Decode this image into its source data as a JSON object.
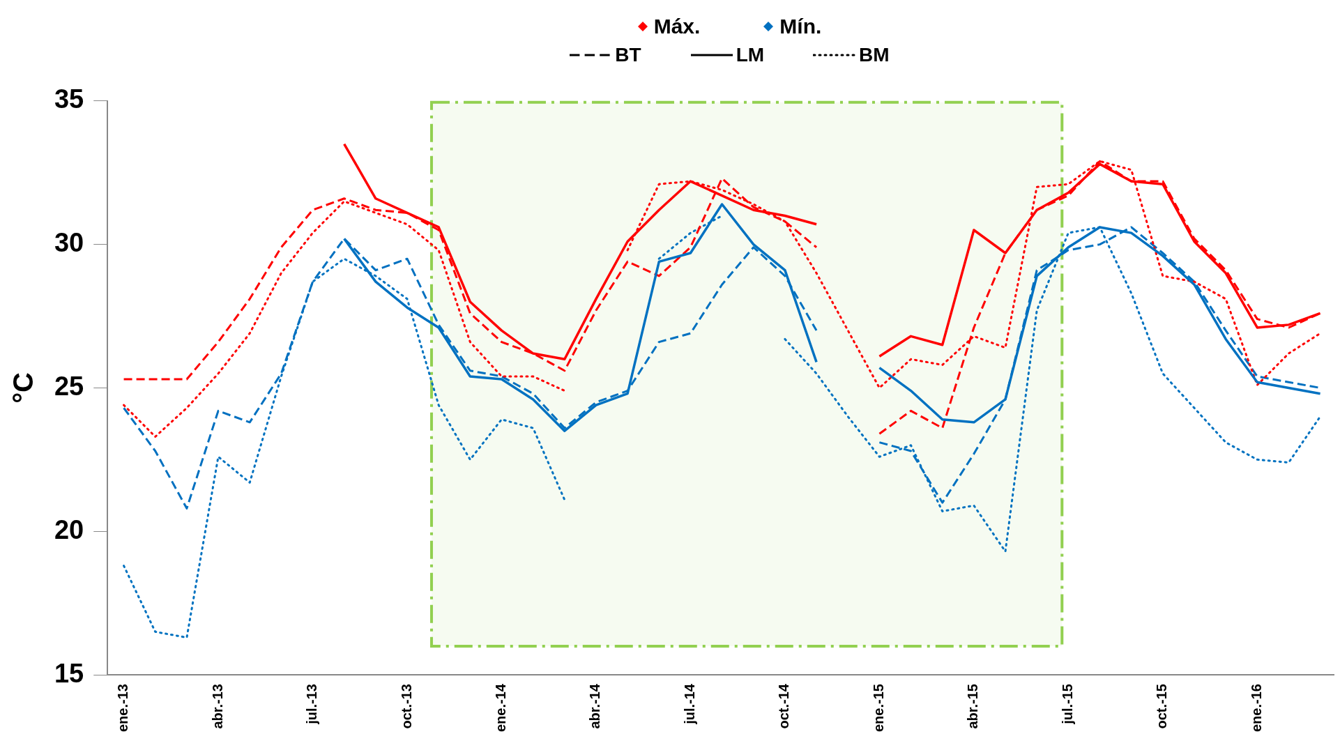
{
  "chart_data": {
    "type": "line",
    "ylabel": "°C",
    "x": [
      "2013-01",
      "2013-02",
      "2013-03",
      "2013-04",
      "2013-05",
      "2013-06",
      "2013-07",
      "2013-08",
      "2013-09",
      "2013-10",
      "2013-11",
      "2013-12",
      "2014-01",
      "2014-02",
      "2014-03",
      "2014-04",
      "2014-05",
      "2014-06",
      "2014-07",
      "2014-08",
      "2014-09",
      "2014-10",
      "2014-11",
      "2014-12",
      "2015-01",
      "2015-02",
      "2015-03",
      "2015-04",
      "2015-05",
      "2015-06",
      "2015-07",
      "2015-08",
      "2015-09",
      "2015-10",
      "2015-11",
      "2015-12",
      "2016-01",
      "2016-02",
      "2016-03"
    ],
    "xlim": [
      "2012-12-16",
      "2016-03-15"
    ],
    "xticks": [
      {
        "value": "2013-01",
        "label": "ene.-13"
      },
      {
        "value": "2013-04",
        "label": "abr.-13"
      },
      {
        "value": "2013-07",
        "label": "jul.-13"
      },
      {
        "value": "2013-10",
        "label": "oct.-13"
      },
      {
        "value": "2014-01",
        "label": "ene.-14"
      },
      {
        "value": "2014-04",
        "label": "abr.-14"
      },
      {
        "value": "2014-07",
        "label": "jul.-14"
      },
      {
        "value": "2014-10",
        "label": "oct.-14"
      },
      {
        "value": "2015-01",
        "label": "ene.-15"
      },
      {
        "value": "2015-04",
        "label": "abr.-15"
      },
      {
        "value": "2015-07",
        "label": "jul.-15"
      },
      {
        "value": "2015-10",
        "label": "oct.-15"
      },
      {
        "value": "2016-01",
        "label": "ene.-16"
      }
    ],
    "ylim": [
      15,
      35
    ],
    "yticks": [
      15,
      20,
      25,
      30,
      35
    ],
    "marker": "none",
    "annotations": [
      "Máx.",
      "Mín.",
      "BT",
      "LM",
      "BM"
    ],
    "bands": [
      {
        "axis": "x",
        "from": "2013-10-25",
        "to": "2015-06-25",
        "color": "#92d050"
      }
    ],
    "series": [
      {
        "color": "#fe0000",
        "line_style": "dashed",
        "values": [
          25.3,
          25.3,
          25.3,
          26.6,
          28.1,
          29.9,
          31.2,
          31.6,
          31.2,
          31.1,
          30.5,
          27.6,
          26.6,
          26.2,
          25.6,
          27.7,
          29.4,
          28.9,
          29.9,
          32.3,
          31.3,
          30.8,
          29.9,
          null,
          23.4,
          24.2,
          23.6,
          27.1,
          29.7,
          31.2,
          31.7,
          32.9,
          32.2,
          32.2,
          30.2,
          29.1,
          27.4,
          27.1,
          27.6
        ]
      },
      {
        "color": "#ff0000",
        "line_style": "solid",
        "values": [
          null,
          null,
          null,
          null,
          null,
          null,
          null,
          33.5,
          31.6,
          31.1,
          30.6,
          28.0,
          27.0,
          26.2,
          26.0,
          28.1,
          30.1,
          31.2,
          32.2,
          31.7,
          31.2,
          31.0,
          30.7,
          null,
          26.1,
          26.8,
          26.5,
          30.5,
          29.7,
          31.2,
          31.8,
          32.8,
          32.2,
          32.1,
          30.1,
          29.0,
          27.1,
          27.2,
          27.6
        ]
      },
      {
        "color": "#fd0101",
        "line_style": "dotted",
        "values": [
          24.4,
          23.3,
          24.3,
          25.5,
          26.9,
          29.0,
          30.4,
          31.5,
          31.1,
          30.7,
          29.8,
          26.6,
          25.4,
          25.4,
          24.9,
          null,
          29.8,
          32.1,
          32.2,
          31.9,
          31.4,
          30.8,
          29.0,
          27.0,
          25.0,
          26.0,
          25.8,
          26.8,
          26.4,
          32.0,
          32.1,
          32.9,
          32.6,
          28.9,
          28.7,
          28.1,
          25.1,
          26.2,
          26.9
        ]
      },
      {
        "color": "#0070c0",
        "line_style": "dashed",
        "values": [
          24.3,
          22.8,
          20.8,
          24.2,
          23.8,
          25.5,
          28.7,
          30.2,
          29.1,
          29.5,
          27.2,
          25.6,
          25.4,
          24.8,
          23.6,
          24.5,
          24.9,
          26.6,
          26.9,
          28.6,
          29.9,
          28.9,
          27.0,
          null,
          23.1,
          22.8,
          21.0,
          22.7,
          24.6,
          29.1,
          29.8,
          30.0,
          30.6,
          29.7,
          28.7,
          27.0,
          25.4,
          25.2,
          25.0
        ]
      },
      {
        "color": "#0071c1",
        "line_style": "solid",
        "values": [
          null,
          null,
          null,
          null,
          null,
          null,
          null,
          30.2,
          28.7,
          27.8,
          27.1,
          25.4,
          25.3,
          24.6,
          23.5,
          24.4,
          24.8,
          29.4,
          29.7,
          31.4,
          30.0,
          29.1,
          25.9,
          null,
          25.7,
          24.9,
          23.9,
          23.8,
          24.6,
          28.9,
          29.9,
          30.6,
          30.4,
          29.6,
          28.6,
          26.7,
          25.2,
          25.0,
          24.8
        ]
      },
      {
        "color": "#0172c0",
        "line_style": "dotted",
        "values": [
          18.8,
          16.5,
          16.3,
          22.6,
          21.7,
          25.4,
          28.7,
          29.5,
          28.9,
          28.1,
          24.4,
          22.5,
          23.9,
          23.6,
          21.1,
          null,
          null,
          29.5,
          30.4,
          31.0,
          null,
          26.7,
          25.5,
          24.0,
          22.6,
          23.0,
          20.7,
          20.9,
          19.3,
          27.7,
          30.4,
          30.6,
          28.3,
          25.5,
          24.3,
          23.1,
          22.5,
          22.4,
          24.0
        ]
      }
    ]
  }
}
